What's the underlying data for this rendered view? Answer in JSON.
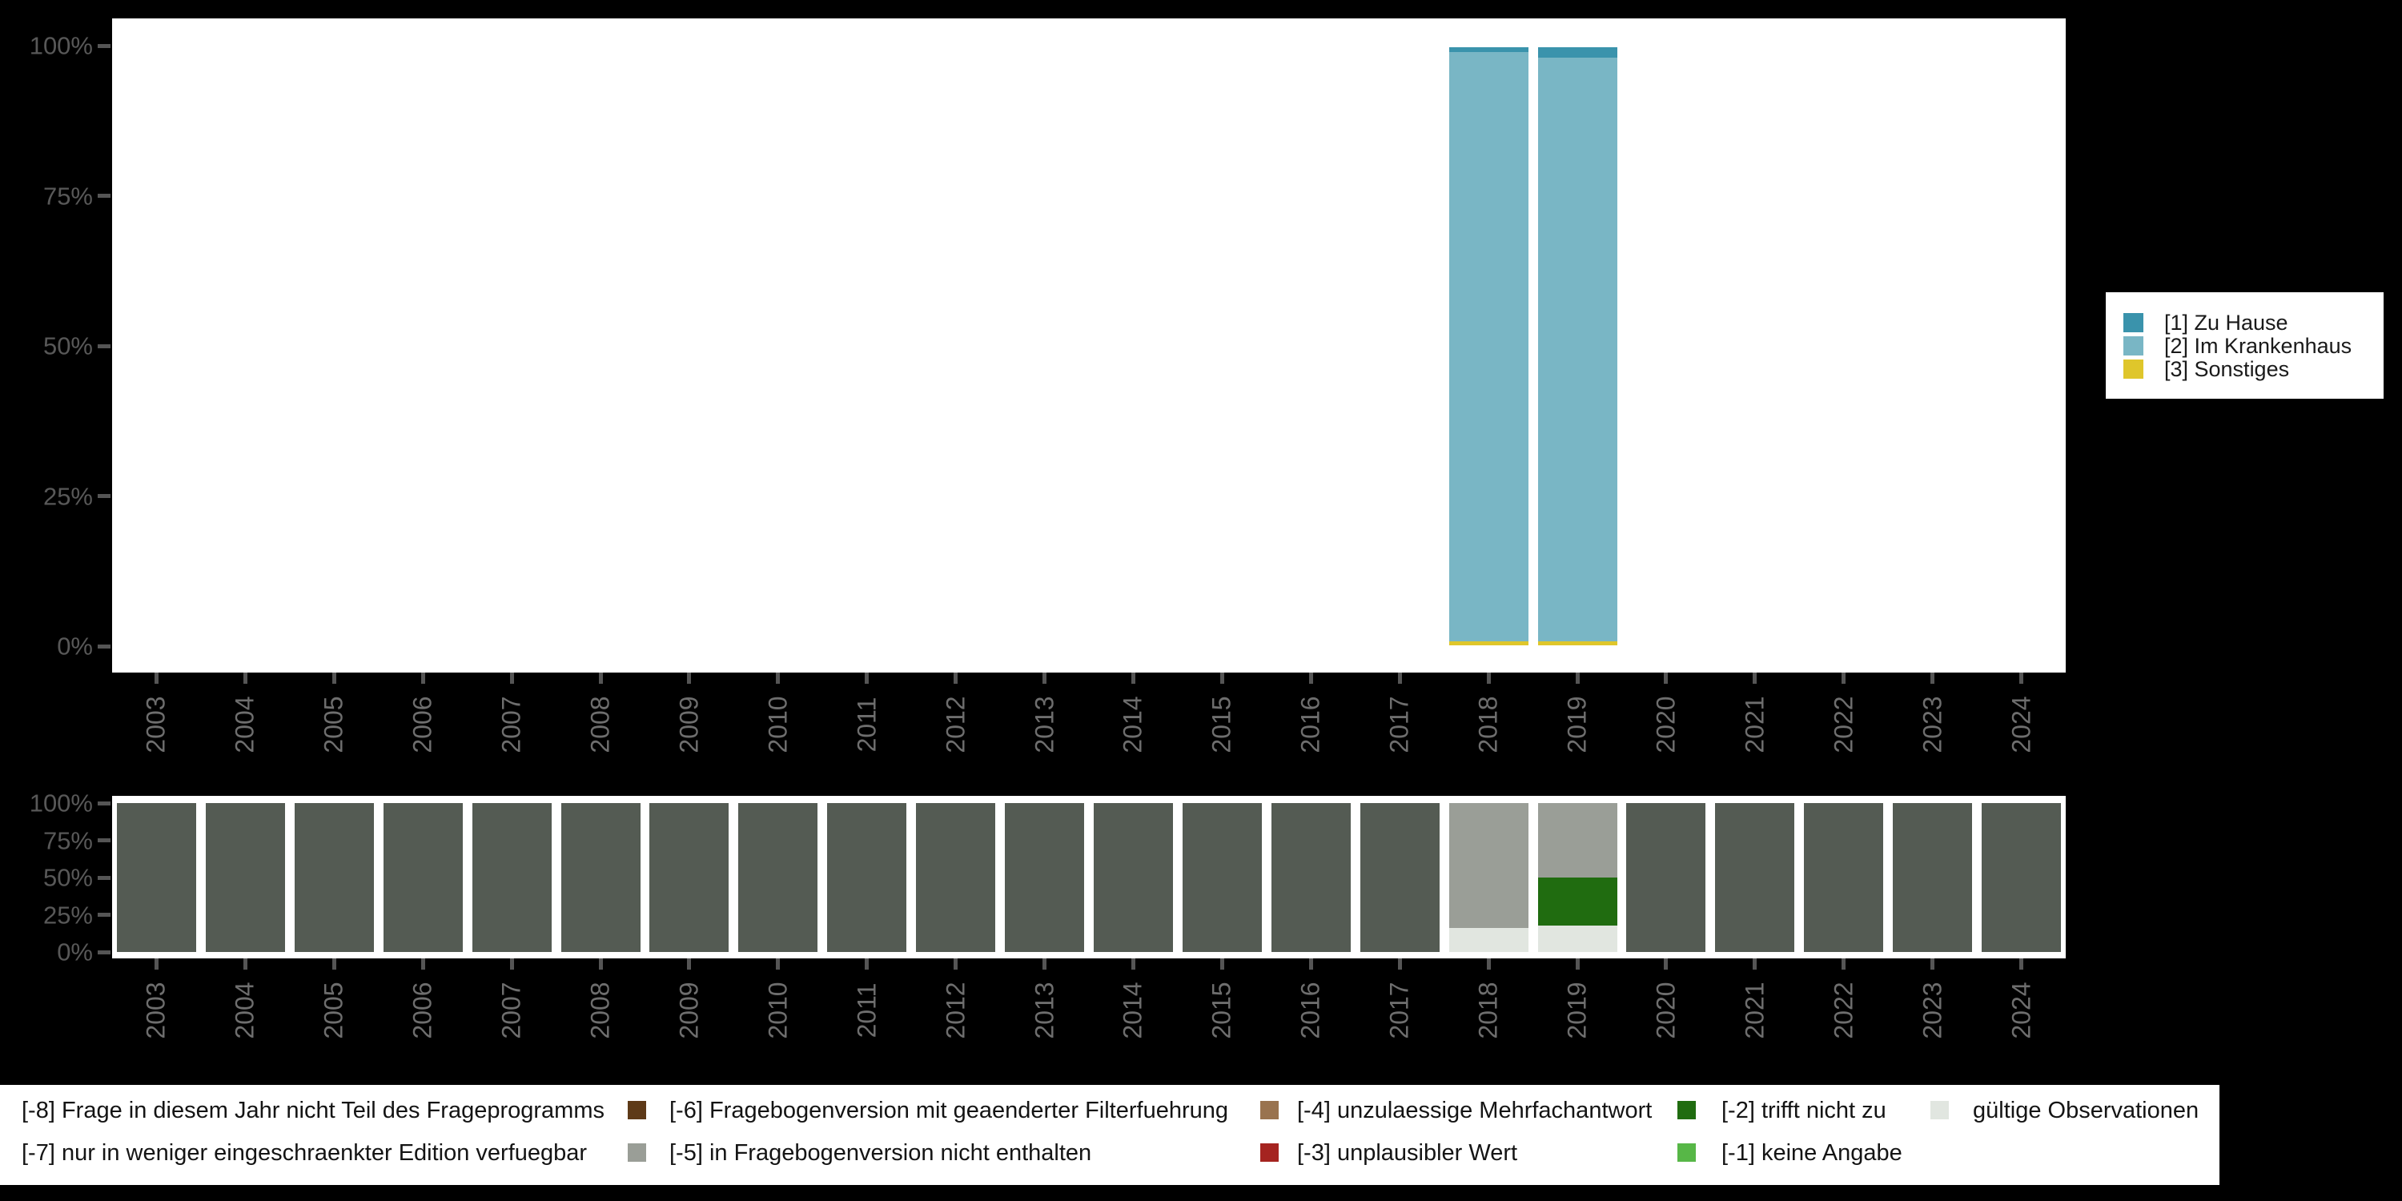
{
  "figure": {
    "background": "#000000",
    "panel_background": "#ffffff"
  },
  "axes": {
    "x_tick_labels": [
      "2003",
      "2004",
      "2005",
      "2006",
      "2007",
      "2008",
      "2009",
      "2010",
      "2011",
      "2012",
      "2013",
      "2014",
      "2015",
      "2016",
      "2017",
      "2018",
      "2019",
      "2020",
      "2021",
      "2022",
      "2023",
      "2024"
    ],
    "y_tick_labels": [
      "100%",
      "75%",
      "50%",
      "25%",
      "0%"
    ]
  },
  "chart_data": [
    {
      "type": "bar",
      "stacked": true,
      "unit": "percent",
      "title": "",
      "xlabel": "",
      "ylabel": "",
      "ylim": [
        0,
        100
      ],
      "grid": false,
      "legend_position": "right",
      "categories": [
        2003,
        2004,
        2005,
        2006,
        2007,
        2008,
        2009,
        2010,
        2011,
        2012,
        2013,
        2014,
        2015,
        2016,
        2017,
        2018,
        2019,
        2020,
        2021,
        2022,
        2023,
        2024
      ],
      "series": [
        {
          "name": "[3] Sonstiges",
          "color": "#dfc62b",
          "values": [
            0,
            0,
            0,
            0,
            0,
            0,
            0,
            0,
            0,
            0,
            0,
            0,
            0,
            0,
            0,
            0.7,
            0.7,
            0,
            0,
            0,
            0,
            0
          ]
        },
        {
          "name": "[2] Im Krankenhaus",
          "color": "#79b6c5",
          "values": [
            0,
            0,
            0,
            0,
            0,
            0,
            0,
            0,
            0,
            0,
            0,
            0,
            0,
            0,
            0,
            98.5,
            97.6,
            0,
            0,
            0,
            0,
            0
          ]
        },
        {
          "name": "[1] Zu Hause",
          "color": "#3a93ac",
          "values": [
            0,
            0,
            0,
            0,
            0,
            0,
            0,
            0,
            0,
            0,
            0,
            0,
            0,
            0,
            0,
            0.8,
            1.7,
            0,
            0,
            0,
            0,
            0
          ]
        }
      ]
    },
    {
      "type": "bar",
      "stacked": true,
      "unit": "percent",
      "title": "",
      "xlabel": "",
      "ylabel": "",
      "ylim": [
        0,
        100
      ],
      "grid": false,
      "categories": [
        2003,
        2004,
        2005,
        2006,
        2007,
        2008,
        2009,
        2010,
        2011,
        2012,
        2013,
        2014,
        2015,
        2016,
        2017,
        2018,
        2019,
        2020,
        2021,
        2022,
        2023,
        2024
      ],
      "series": [
        {
          "name": "dark-olive-gray",
          "color": "#545b53",
          "values": [
            100,
            100,
            100,
            100,
            100,
            100,
            100,
            100,
            100,
            100,
            100,
            100,
            100,
            100,
            100,
            0,
            0,
            100,
            100,
            100,
            100,
            100
          ]
        },
        {
          "name": "light-gray",
          "color": "#e1e6e0",
          "values": [
            0,
            0,
            0,
            0,
            0,
            0,
            0,
            0,
            0,
            0,
            0,
            0,
            0,
            0,
            0,
            16,
            18,
            0,
            0,
            0,
            0,
            0
          ]
        },
        {
          "name": "dark-green",
          "color": "#206c10",
          "values": [
            0,
            0,
            0,
            0,
            0,
            0,
            0,
            0,
            0,
            0,
            0,
            0,
            0,
            0,
            0,
            0,
            32,
            0,
            0,
            0,
            0,
            0
          ]
        },
        {
          "name": "medium-gray",
          "color": "#9a9e97",
          "values": [
            0,
            0,
            0,
            0,
            0,
            0,
            0,
            0,
            0,
            0,
            0,
            0,
            0,
            0,
            0,
            84,
            50,
            0,
            0,
            0,
            0,
            0
          ]
        }
      ]
    }
  ],
  "top_legend": {
    "entries": [
      {
        "label": "[1] Zu Hause",
        "color": "#3a93ac"
      },
      {
        "label": "[2] Im Krankenhaus",
        "color": "#79b6c5"
      },
      {
        "label": "[3] Sonstiges",
        "color": "#dfc62b"
      }
    ]
  },
  "missing_legend": {
    "items": [
      {
        "label": "[-8] Frage in diesem Jahr nicht Teil des Frageprogramms",
        "swatch_color": "#5e3a18"
      },
      {
        "label": "[-6] Fragebogenversion mit geaenderter Filterfuehrung",
        "swatch_color": "#99734f"
      },
      {
        "label": "[-4] unzulaessige Mehrfachantwort",
        "swatch_color": "#206c10"
      },
      {
        "label": "[-2] trifft nicht zu",
        "swatch_color": "#e1e6e0"
      },
      {
        "label": "gültige Observationen",
        "swatch_color": null
      },
      {
        "label": "[-7] nur in weniger eingeschraenkter Edition verfuegbar",
        "swatch_color": "#9a9e97"
      },
      {
        "label": "[-5] in Fragebogenversion nicht enthalten",
        "swatch_color": "#a52420"
      },
      {
        "label": "[-3] unplausibler Wert",
        "swatch_color": "#57b747"
      },
      {
        "label": "[-1] keine Angabe",
        "swatch_color": null
      }
    ]
  }
}
